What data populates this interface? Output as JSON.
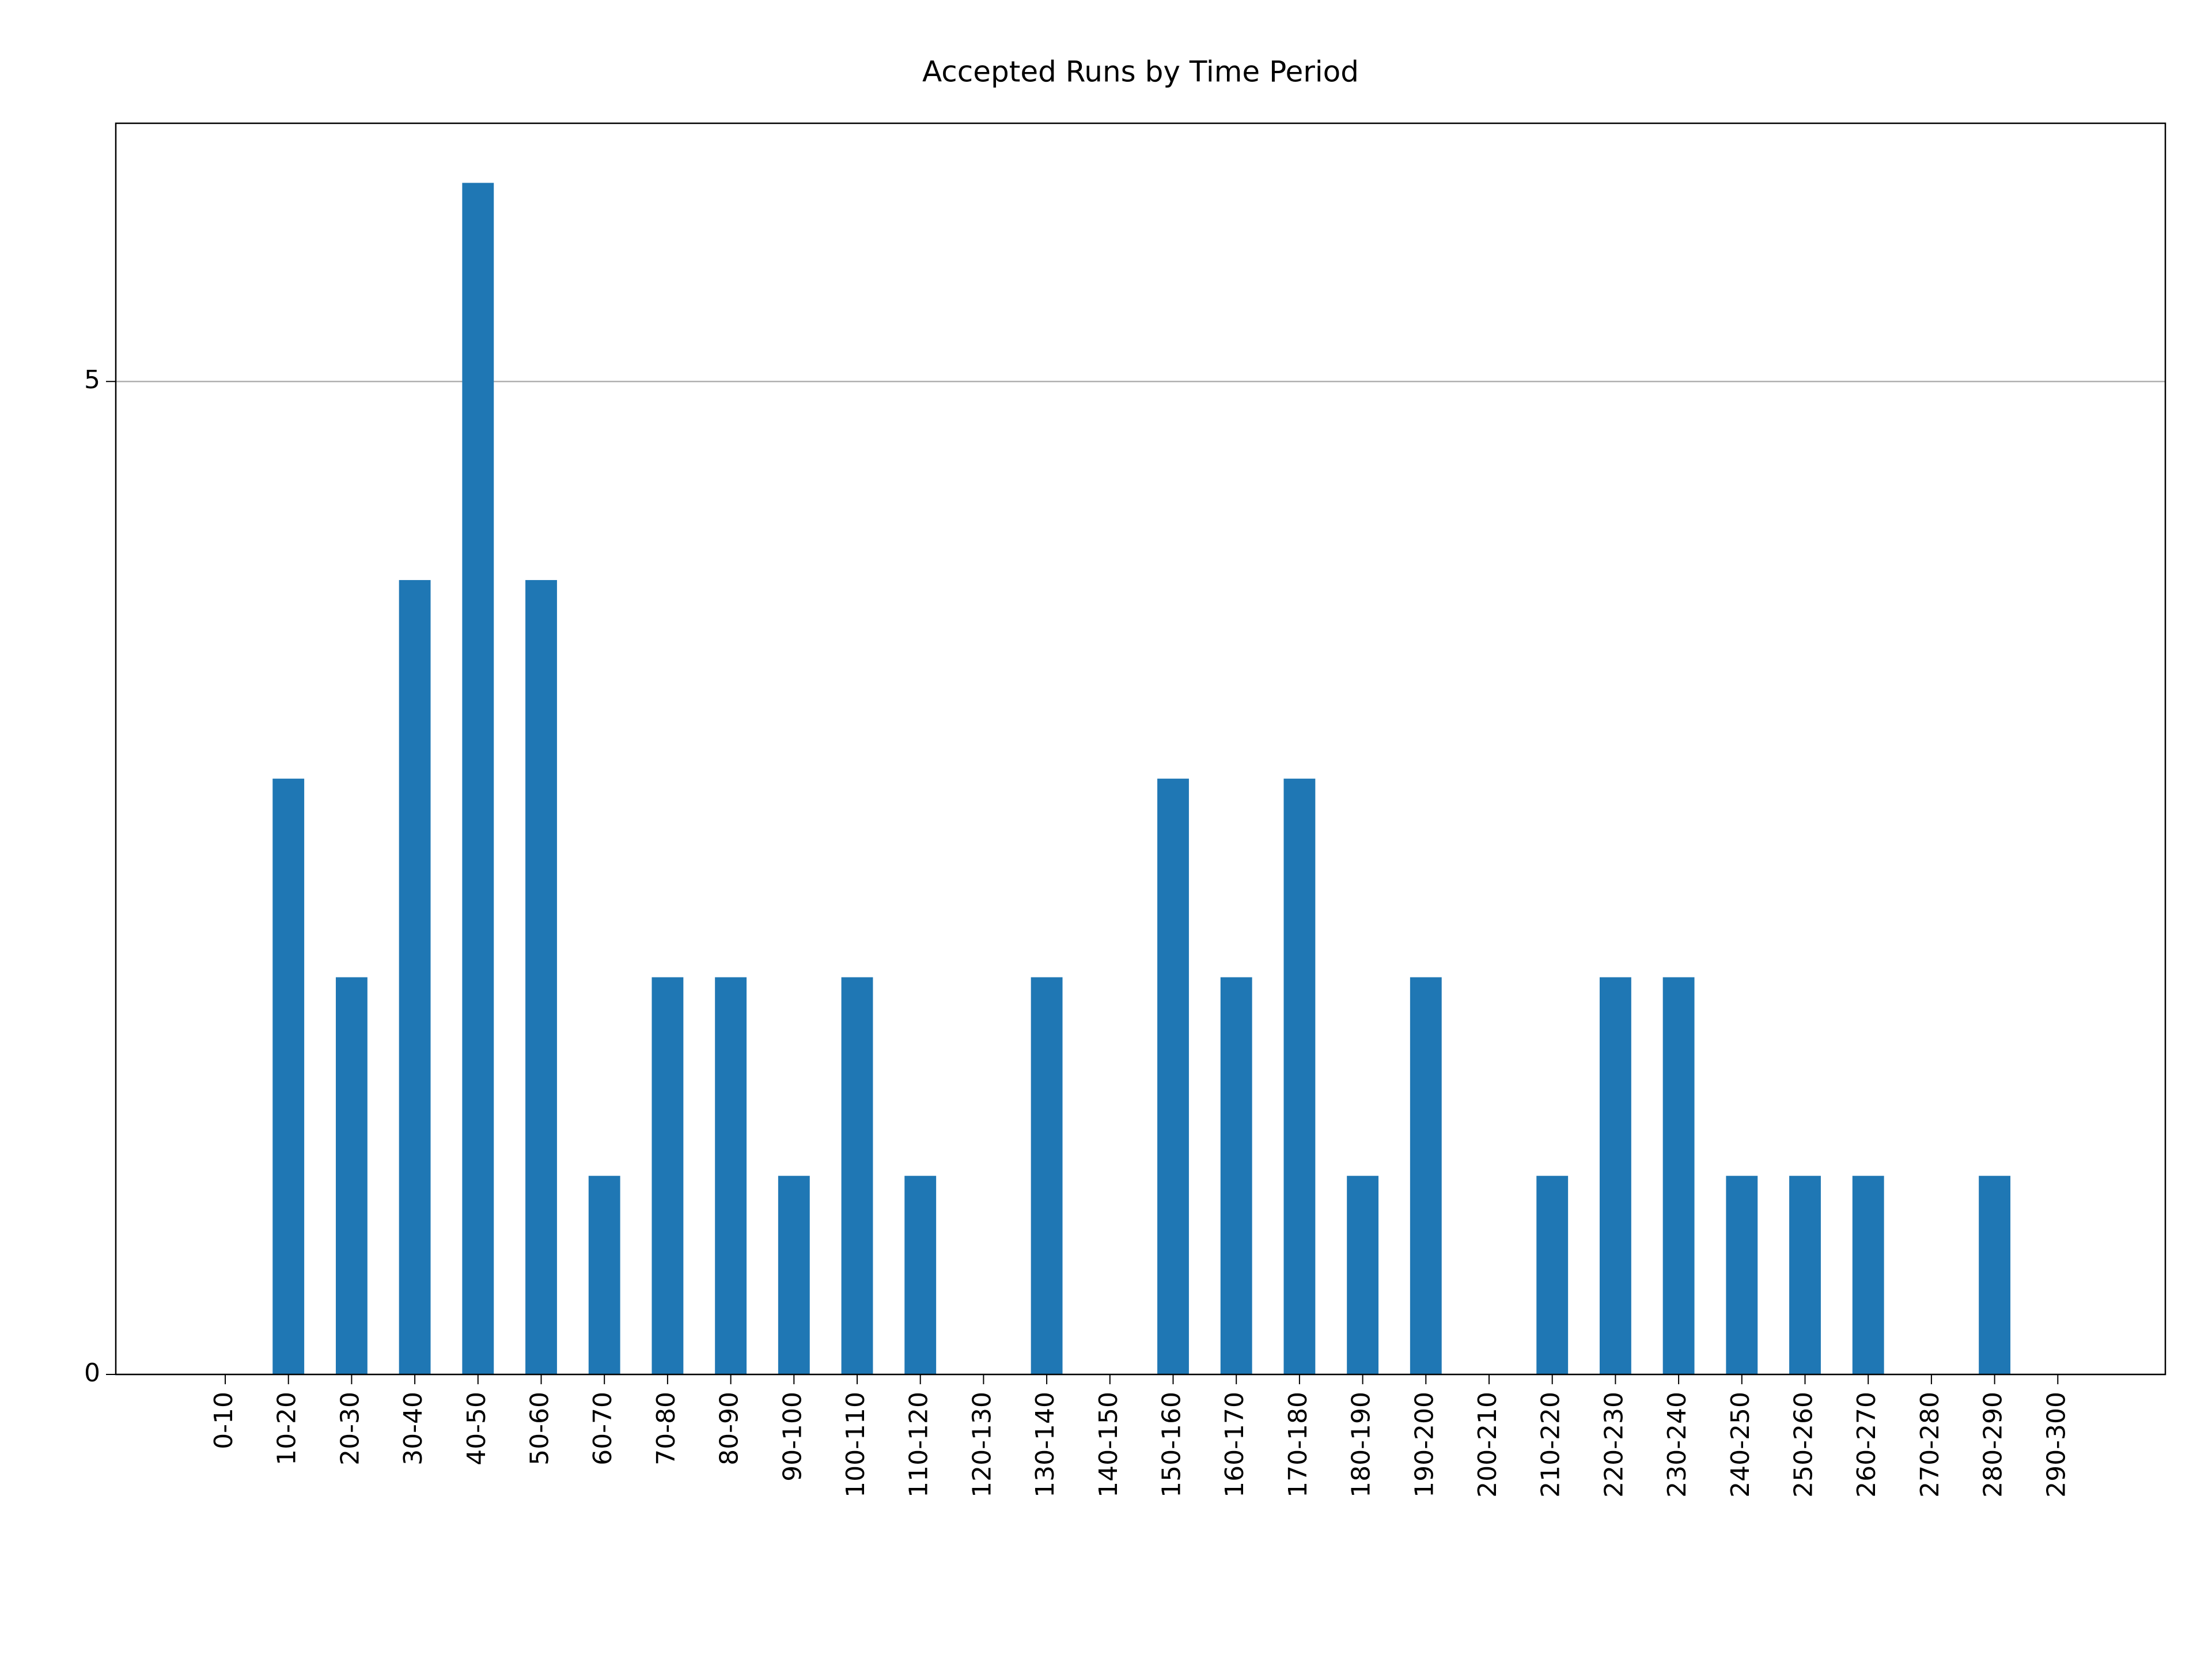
{
  "chart_data": {
    "type": "bar",
    "title": "Accepted Runs by Time Period",
    "categories": [
      "0-10",
      "10-20",
      "20-30",
      "30-40",
      "40-50",
      "50-60",
      "60-70",
      "70-80",
      "80-90",
      "90-100",
      "100-110",
      "110-120",
      "120-130",
      "130-140",
      "140-150",
      "150-160",
      "160-170",
      "170-180",
      "180-190",
      "190-200",
      "200-210",
      "210-220",
      "220-230",
      "230-240",
      "240-250",
      "250-260",
      "260-270",
      "270-280",
      "280-290",
      "290-300"
    ],
    "values": [
      0,
      3,
      2,
      4,
      6,
      4,
      1,
      2,
      2,
      1,
      2,
      1,
      0,
      2,
      0,
      3,
      2,
      3,
      1,
      2,
      0,
      1,
      2,
      2,
      1,
      1,
      1,
      0,
      1,
      0
    ],
    "color": "#1f77b4",
    "ylim": [
      0,
      6.3
    ],
    "yticks": [
      0,
      5
    ],
    "grid": true
  }
}
